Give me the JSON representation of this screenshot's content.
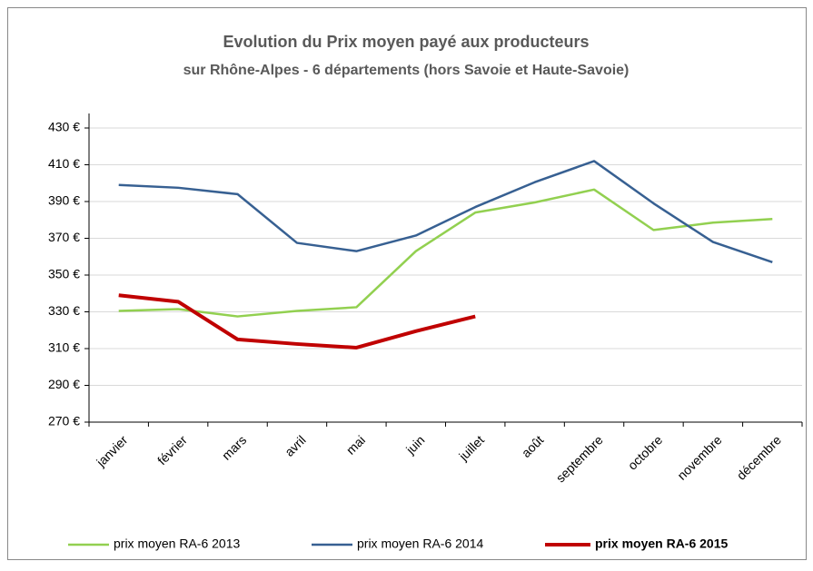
{
  "chart_data": {
    "type": "line",
    "title": "Evolution du Prix moyen payé aux producteurs",
    "subtitle": "sur Rhône-Alpes - 6 départements (hors Savoie et Haute-Savoie)",
    "categories": [
      "janvier",
      "février",
      "mars",
      "avril",
      "mai",
      "juin",
      "juillet",
      "août",
      "septembre",
      "octobre",
      "novembre",
      "décembre"
    ],
    "series": [
      {
        "name": "prix moyen RA-6 2013",
        "color": "#92d050",
        "linewidth": 2.5,
        "values": [
          330.5,
          331.5,
          327.5,
          330.5,
          332.5,
          363,
          384,
          389.5,
          396.5,
          374.5,
          378.5,
          380.5
        ]
      },
      {
        "name": "prix moyen RA-6 2014",
        "color": "#376092",
        "linewidth": 2.5,
        "values": [
          399,
          397.5,
          394,
          367.5,
          363,
          371.5,
          387,
          400.5,
          412,
          389,
          368,
          357
        ]
      },
      {
        "name": "prix moyen RA-6 2015",
        "color": "#c00000",
        "linewidth": 4,
        "values": [
          339,
          335.5,
          315,
          312.5,
          310.5,
          319.5,
          327.5,
          null,
          null,
          null,
          null,
          null
        ]
      }
    ],
    "ylim": [
      270,
      430
    ],
    "yticks": [
      {
        "value": 270,
        "label": "270 €"
      },
      {
        "value": 290,
        "label": "290 €"
      },
      {
        "value": 310,
        "label": "310 €"
      },
      {
        "value": 330,
        "label": "330 €"
      },
      {
        "value": 350,
        "label": "350 €"
      },
      {
        "value": 370,
        "label": "370 €"
      },
      {
        "value": 390,
        "label": "390 €"
      },
      {
        "value": 410,
        "label": "410 €"
      },
      {
        "value": 430,
        "label": "430 €"
      }
    ],
    "grid": true,
    "legend": "bottom"
  }
}
